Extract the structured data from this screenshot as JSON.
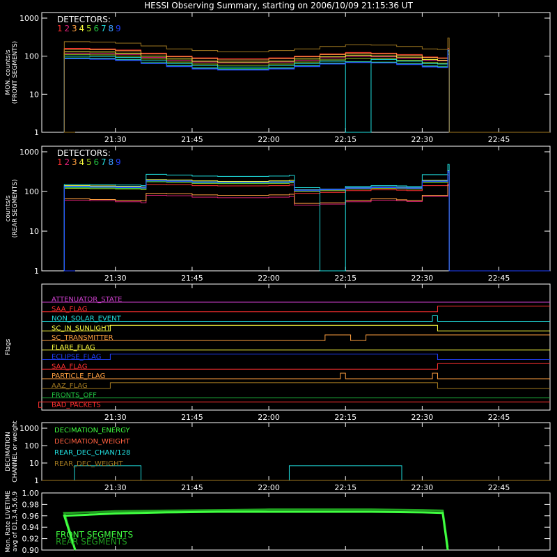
{
  "title": "HESSI Observing Summary, starting on 2006/10/09 21:15:36 UT",
  "detector_label": "DETECTORS:",
  "detector_numbers": [
    "1",
    "2",
    "3",
    "4",
    "5",
    "6",
    "7",
    "8",
    "9"
  ],
  "detector_colors": [
    "#ff3030",
    "#e0207a",
    "#ffa040",
    "#ffff40",
    "#a0d020",
    "#20c040",
    "#20e0e0",
    "#40a0ff",
    "#2040ff"
  ],
  "x_ticks": [
    "21:30",
    "21:45",
    "22:00",
    "22:15",
    "22:30",
    "22:45"
  ],
  "chart_data": [
    {
      "type": "line",
      "panel": "front",
      "ylabel": "MON. counts/s (FRONT SEGMENTS)",
      "ylabel_lines": [
        "MON. counts/s",
        "(FRONT SEGMENTS)"
      ],
      "yscale": "log",
      "ylim": [
        1,
        1000
      ],
      "y_ticks": [
        "1",
        "10",
        "100",
        "1000"
      ],
      "x": [
        "21:20",
        "21:25",
        "21:30",
        "21:35",
        "21:40",
        "21:45",
        "21:50",
        "21:55",
        "22:00",
        "22:05",
        "22:10",
        "22:15",
        "22:20",
        "22:25",
        "22:30",
        "22:33",
        "22:35"
      ],
      "series": [
        {
          "name": "1",
          "color": "#ff3030",
          "values": [
            160,
            155,
            145,
            120,
            100,
            90,
            85,
            85,
            90,
            100,
            115,
            125,
            120,
            110,
            95,
            90,
            160
          ]
        },
        {
          "name": "2",
          "color": "#e0207a",
          "values": [
            120,
            118,
            110,
            92,
            78,
            70,
            66,
            66,
            70,
            78,
            90,
            98,
            96,
            88,
            78,
            75,
            140
          ]
        },
        {
          "name": "3",
          "color": "#ffa040",
          "values": [
            150,
            148,
            138,
            115,
            96,
            86,
            80,
            80,
            86,
            96,
            110,
            120,
            116,
            106,
            92,
            88,
            150
          ]
        },
        {
          "name": "4",
          "color": "#ffff40",
          "values": [
            130,
            128,
            120,
            100,
            84,
            74,
            70,
            70,
            74,
            84,
            96,
            106,
            102,
            94,
            82,
            78,
            140
          ]
        },
        {
          "name": "5",
          "color": "#a0d020",
          "values": [
            110,
            108,
            100,
            84,
            70,
            62,
            58,
            58,
            62,
            70,
            80,
            88,
            86,
            78,
            68,
            65,
            130
          ]
        },
        {
          "name": "6",
          "color": "#20c040",
          "values": [
            90,
            88,
            82,
            68,
            57,
            50,
            47,
            47,
            50,
            57,
            66,
            72,
            70,
            64,
            56,
            54,
            120
          ]
        },
        {
          "name": "7",
          "color": "#20e0e0",
          "values": [
            100,
            98,
            92,
            76,
            64,
            56,
            52,
            52,
            56,
            64,
            74,
            1,
            82,
            74,
            64,
            62,
            140
          ]
        },
        {
          "name": "8",
          "color": "#40a0ff",
          "values": [
            88,
            86,
            80,
            66,
            55,
            48,
            45,
            45,
            48,
            55,
            64,
            70,
            68,
            62,
            54,
            52,
            110
          ]
        },
        {
          "name": "9",
          "color": "#2040ff",
          "values": [
            85,
            83,
            77,
            64,
            53,
            46,
            43,
            43,
            46,
            53,
            62,
            68,
            66,
            60,
            52,
            50,
            150
          ]
        },
        {
          "name": "",
          "color": "#a07820",
          "values": [
            240,
            235,
            220,
            185,
            155,
            140,
            130,
            130,
            140,
            155,
            180,
            200,
            195,
            180,
            155,
            150,
            300
          ]
        }
      ]
    },
    {
      "type": "line",
      "panel": "rear",
      "ylabel": "counts/s (REAR SEGMENTS)",
      "ylabel_lines": [
        "counts/s",
        "(REAR SEGMENTS)"
      ],
      "yscale": "log",
      "ylim": [
        1,
        1000
      ],
      "y_ticks": [
        "1",
        "10",
        "100",
        "1000"
      ],
      "x": [
        "21:20",
        "21:25",
        "21:30",
        "21:35",
        "21:36",
        "21:40",
        "21:45",
        "21:50",
        "21:55",
        "22:00",
        "22:04",
        "22:05",
        "22:10",
        "22:15",
        "22:20",
        "22:25",
        "22:27",
        "22:30",
        "22:35"
      ],
      "series": [
        {
          "name": "1",
          "color": "#ff3030",
          "values": [
            130,
            128,
            125,
            122,
            150,
            148,
            140,
            138,
            138,
            140,
            145,
            90,
            95,
            105,
            110,
            108,
            105,
            140,
            260
          ]
        },
        {
          "name": "2",
          "color": "#e0207a",
          "values": [
            60,
            58,
            55,
            52,
            80,
            78,
            72,
            70,
            70,
            72,
            75,
            45,
            48,
            55,
            60,
            58,
            56,
            75,
            140
          ]
        },
        {
          "name": "3",
          "color": "#ffa040",
          "values": [
            65,
            63,
            60,
            58,
            90,
            88,
            82,
            80,
            80,
            82,
            85,
            50,
            52,
            60,
            65,
            62,
            60,
            80,
            150
          ]
        },
        {
          "name": "4",
          "color": "#ffff40",
          "values": [
            140,
            138,
            135,
            130,
            200,
            195,
            185,
            180,
            180,
            185,
            190,
            110,
            115,
            125,
            130,
            128,
            125,
            190,
            340
          ]
        },
        {
          "name": "5",
          "color": "#a0d020",
          "values": [
            120,
            118,
            115,
            112,
            175,
            170,
            160,
            158,
            158,
            160,
            165,
            100,
            105,
            115,
            120,
            118,
            115,
            170,
            300
          ]
        },
        {
          "name": "6",
          "color": "#20c040",
          "values": [
            125,
            123,
            120,
            118,
            180,
            175,
            165,
            162,
            162,
            165,
            170,
            105,
            110,
            120,
            125,
            122,
            120,
            175,
            310
          ]
        },
        {
          "name": "7",
          "color": "#20e0e0",
          "values": [
            150,
            148,
            145,
            140,
            270,
            260,
            245,
            240,
            240,
            245,
            255,
            125,
            1,
            135,
            140,
            138,
            135,
            265,
            480
          ]
        },
        {
          "name": "8",
          "color": "#40a0ff",
          "values": [
            135,
            133,
            130,
            128,
            190,
            185,
            175,
            172,
            172,
            175,
            180,
            110,
            115,
            125,
            130,
            128,
            125,
            185,
            330
          ]
        },
        {
          "name": "9",
          "color": "#2040ff",
          "values": [
            130,
            128,
            125,
            122,
            185,
            180,
            170,
            168,
            168,
            170,
            175,
            105,
            110,
            120,
            125,
            122,
            120,
            180,
            320
          ]
        }
      ]
    },
    {
      "type": "line",
      "panel": "flags",
      "ylabel": "Flags",
      "flags": [
        {
          "name": "ATTENUATOR_STATE",
          "color": "#d040d0",
          "transitions": []
        },
        {
          "name": "SAA_FLAG",
          "color": "#ff3030",
          "transitions": [
            "22:33"
          ]
        },
        {
          "name": "NON_SOLAR_EVENT",
          "color": "#20e0e0",
          "transitions": [
            "22:32",
            "22:33"
          ]
        },
        {
          "name": "SC_IN_SUNLIGHT",
          "color": "#ffff40",
          "transitions": [
            "21:29",
            "22:33"
          ]
        },
        {
          "name": "SC_TRANSMITTER",
          "color": "#ffa040",
          "transitions": [
            "22:11",
            "22:16",
            "22:19"
          ]
        },
        {
          "name": "FLARE_FLAG",
          "color": "#ffff40",
          "transitions": []
        },
        {
          "name": "ECLIPSE_FLAG",
          "color": "#2040ff",
          "transitions": [
            "21:29",
            "22:33"
          ]
        },
        {
          "name": "SAA_FLAG",
          "color": "#ff3030",
          "transitions": [
            "22:33"
          ]
        },
        {
          "name": "PARTICLE_FLAG",
          "color": "#ffa040",
          "transitions": [
            "22:14",
            "22:15",
            "22:32",
            "22:33"
          ]
        },
        {
          "name": "AAZ_FLAG",
          "color": "#a07820",
          "transitions": [
            "21:29",
            "22:33"
          ]
        },
        {
          "name": "FRONTS_OFF",
          "color": "#20c040",
          "transitions": []
        },
        {
          "name": "BAD_PACKETS",
          "color": "#ff3030",
          "transitions": [
            "21:15"
          ]
        }
      ]
    },
    {
      "type": "line",
      "panel": "decimation",
      "ylabel": "DECIMATION CHANNEL or weight",
      "ylabel_lines": [
        "DECIMATION",
        "CHANNEL or weight"
      ],
      "yscale": "log",
      "ylim": [
        1,
        1000
      ],
      "y_ticks": [
        "1",
        "10",
        "100",
        "1000"
      ],
      "series": [
        {
          "name": "DECIMATION_ENERGY",
          "color": "#40ff40",
          "values": [
            1
          ]
        },
        {
          "name": "DECIMATION_WEIGHT",
          "color": "#ff6040",
          "values": [
            1
          ]
        },
        {
          "name": "REAR_DEC_CHAN/128",
          "color": "#20e0e0",
          "values": [
            1,
            7,
            1,
            7,
            1
          ],
          "x": [
            "21:20",
            "21:22",
            "21:35",
            "22:04",
            "22:26"
          ]
        },
        {
          "name": "REAR_DEC_WEIGHT",
          "color": "#a07820",
          "values": [
            1
          ]
        }
      ]
    },
    {
      "type": "line",
      "panel": "livetime",
      "ylabel": "Mon. Rate LIVETIME avg of D1,3,4,5,6,9",
      "ylabel_lines": [
        "Mon. Rate LIVETIME",
        "avg of D1,3,4,5,6,9"
      ],
      "ylim": [
        0.9,
        1.0
      ],
      "y_ticks": [
        "0.90",
        "0.92",
        "0.94",
        "0.96",
        "0.98",
        "1.00"
      ],
      "x": [
        "21:20",
        "21:25",
        "21:30",
        "21:40",
        "21:50",
        "22:00",
        "22:10",
        "22:20",
        "22:30",
        "22:34",
        "22:35"
      ],
      "series": [
        {
          "name": "FRONT SEGMENTS",
          "color": "#40ff40",
          "values": [
            0.96,
            0.962,
            0.964,
            0.966,
            0.967,
            0.967,
            0.967,
            0.967,
            0.966,
            0.965,
            0.9
          ]
        },
        {
          "name": "REAR SEGMENTS",
          "color": "#20a020",
          "values": [
            0.965,
            0.966,
            0.968,
            0.969,
            0.97,
            0.971,
            0.971,
            0.971,
            0.97,
            0.969,
            0.905
          ]
        }
      ]
    }
  ]
}
